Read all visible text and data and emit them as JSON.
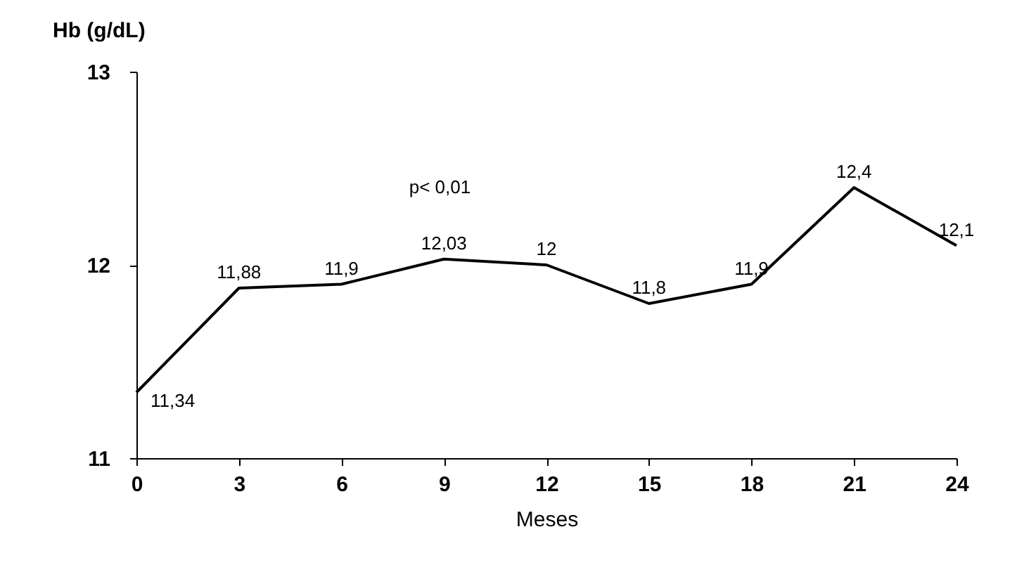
{
  "chart_data": {
    "type": "line",
    "xlabel": "Meses",
    "ylabel": "Hb (g/dL)",
    "x": [
      0,
      3,
      6,
      9,
      12,
      15,
      18,
      21,
      24
    ],
    "series": [
      {
        "color": "#000000",
        "values": [
          11.34,
          11.88,
          11.9,
          12.03,
          12,
          11.8,
          11.9,
          12.4,
          12.1
        ],
        "value_labels": [
          "11,34",
          "11,88",
          "11,9",
          "12,03",
          "12",
          "11,8",
          "11,9",
          "12,4",
          "12,1"
        ]
      }
    ],
    "xlim": [
      0,
      24
    ],
    "xticks": [
      0,
      3,
      6,
      9,
      12,
      15,
      18,
      21,
      24
    ],
    "ylim": [
      11,
      13
    ],
    "yticks": [
      11,
      12,
      13
    ],
    "grid": false,
    "marker": "none",
    "line_style": "solid",
    "annotations": [
      "p< 0,01"
    ]
  }
}
